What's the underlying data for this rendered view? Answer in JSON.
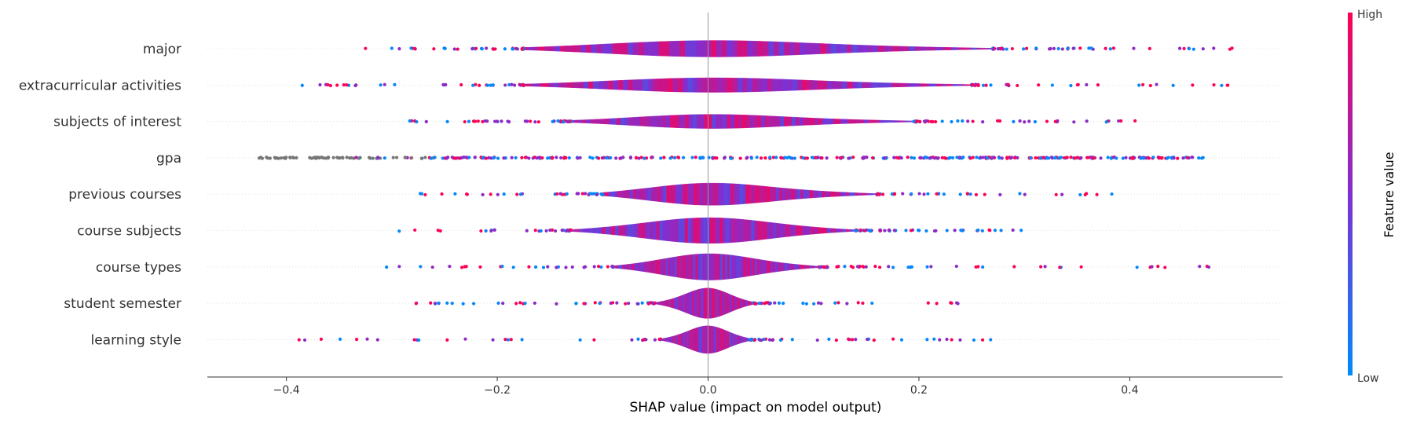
{
  "chart_data": {
    "type": "scatter",
    "subtype": "shap-violin-summary",
    "xlabel": "SHAP value (impact on model output)",
    "xlim": [
      -0.475,
      0.545
    ],
    "xticks": [
      -0.4,
      -0.2,
      0.0,
      0.2,
      0.4
    ],
    "xtick_labels": [
      "−0.4",
      "−0.2",
      "0.0",
      "0.2",
      "0.4"
    ],
    "features": [
      {
        "name": "major",
        "min": -0.325,
        "max": 0.497,
        "core": [
          -0.175,
          0.27
        ],
        "peak": 0.4
      },
      {
        "name": "extracurricular activities",
        "min": -0.385,
        "max": 0.493,
        "core": [
          -0.175,
          0.25
        ],
        "peak": 0.35
      },
      {
        "name": "subjects of interest",
        "min": -0.283,
        "max": 0.405,
        "core": [
          -0.13,
          0.195
        ],
        "peak": 0.34
      },
      {
        "name": "gpa",
        "min": -0.428,
        "max": 0.47,
        "core": [
          0,
          0
        ],
        "peak": 0.03
      },
      {
        "name": "previous courses",
        "min": -0.273,
        "max": 0.383,
        "core": [
          -0.1,
          0.16
        ],
        "peak": 0.55
      },
      {
        "name": "course subjects",
        "min": -0.293,
        "max": 0.297,
        "core": [
          -0.13,
          0.14
        ],
        "peak": 0.63
      },
      {
        "name": "course types",
        "min": -0.305,
        "max": 0.475,
        "core": [
          -0.09,
          0.105
        ],
        "peak": 0.65
      },
      {
        "name": "student semester",
        "min": -0.277,
        "max": 0.237,
        "core": [
          -0.05,
          0.043
        ],
        "peak": 0.75
      },
      {
        "name": "learning style",
        "min": -0.388,
        "max": 0.268,
        "core": [
          -0.045,
          0.04
        ],
        "peak": 0.68
      }
    ],
    "colorbar": {
      "label": "Feature value",
      "high_label": "High",
      "low_label": "Low",
      "low_color": "#008bfb",
      "mid_color": "#7f2fd2",
      "high_color": "#ff0052"
    },
    "missing_color": "#777777",
    "zero_line": true,
    "grid": false
  }
}
